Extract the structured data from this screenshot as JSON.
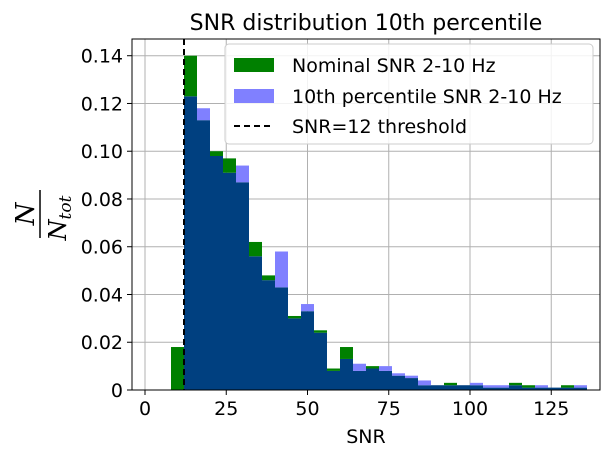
{
  "chart_data": {
    "type": "bar",
    "title": "SNR distribution 10th percentile",
    "xlabel": "SNR",
    "ylabel": {
      "numerator": "N",
      "denominator": "N",
      "subscript": "tot"
    },
    "xlim": [
      -4,
      140
    ],
    "ylim": [
      0,
      0.147
    ],
    "xticks": [
      0,
      25,
      50,
      75,
      100,
      125
    ],
    "yticks": [
      0,
      0.02,
      0.04,
      0.06,
      0.08,
      0.1,
      0.12,
      0.14
    ],
    "ytick_labels": [
      "0",
      "0.02",
      "0.04",
      "0.06",
      "0.08",
      "0.10",
      "0.12",
      "0.14"
    ],
    "grid": true,
    "legend_position": "top-right",
    "bin_width": 4,
    "series": [
      {
        "name": "Nominal SNR 2-10 Hz",
        "color": "#008000",
        "bins": [
          [
            8,
            0.018
          ],
          [
            12,
            0.14
          ],
          [
            16,
            0.113
          ],
          [
            20,
            0.1
          ],
          [
            24,
            0.097
          ],
          [
            28,
            0.087
          ],
          [
            32,
            0.062
          ],
          [
            36,
            0.048
          ],
          [
            40,
            0.043
          ],
          [
            44,
            0.031
          ],
          [
            48,
            0.033
          ],
          [
            52,
            0.025
          ],
          [
            56,
            0.009
          ],
          [
            60,
            0.018
          ],
          [
            64,
            0.008
          ],
          [
            68,
            0.01
          ],
          [
            72,
            0.008
          ],
          [
            76,
            0.006
          ],
          [
            80,
            0.005
          ],
          [
            84,
            0.002
          ],
          [
            88,
            0.002
          ],
          [
            92,
            0.003
          ],
          [
            96,
            0.002
          ],
          [
            100,
            0.002
          ],
          [
            104,
            0.001
          ],
          [
            108,
            0.001
          ],
          [
            112,
            0.003
          ],
          [
            116,
            0.002
          ],
          [
            120,
            0.001
          ],
          [
            124,
            0.001
          ],
          [
            128,
            0.002
          ],
          [
            132,
            0.001
          ]
        ]
      },
      {
        "name": "10th percentile SNR 2-10 Hz",
        "color": "#8080ff",
        "bins": [
          [
            12,
            0.123
          ],
          [
            16,
            0.118
          ],
          [
            20,
            0.098
          ],
          [
            24,
            0.091
          ],
          [
            28,
            0.094
          ],
          [
            32,
            0.056
          ],
          [
            36,
            0.046
          ],
          [
            40,
            0.058
          ],
          [
            44,
            0.03
          ],
          [
            48,
            0.036
          ],
          [
            52,
            0.024
          ],
          [
            56,
            0.008
          ],
          [
            60,
            0.013
          ],
          [
            64,
            0.011
          ],
          [
            68,
            0.009
          ],
          [
            72,
            0.01
          ],
          [
            76,
            0.007
          ],
          [
            80,
            0.006
          ],
          [
            84,
            0.004
          ],
          [
            88,
            0.002
          ],
          [
            92,
            0.002
          ],
          [
            96,
            0.002
          ],
          [
            100,
            0.003
          ],
          [
            104,
            0.002
          ],
          [
            108,
            0.002
          ],
          [
            112,
            0.002
          ],
          [
            116,
            0.001
          ],
          [
            120,
            0.002
          ],
          [
            124,
            0.001
          ],
          [
            128,
            0.001
          ],
          [
            132,
            0.002
          ]
        ]
      }
    ],
    "overlap_color": "#004080",
    "threshold": {
      "name": "SNR=12 threshold",
      "x": 12,
      "color": "#000000",
      "style": "dashed"
    }
  }
}
